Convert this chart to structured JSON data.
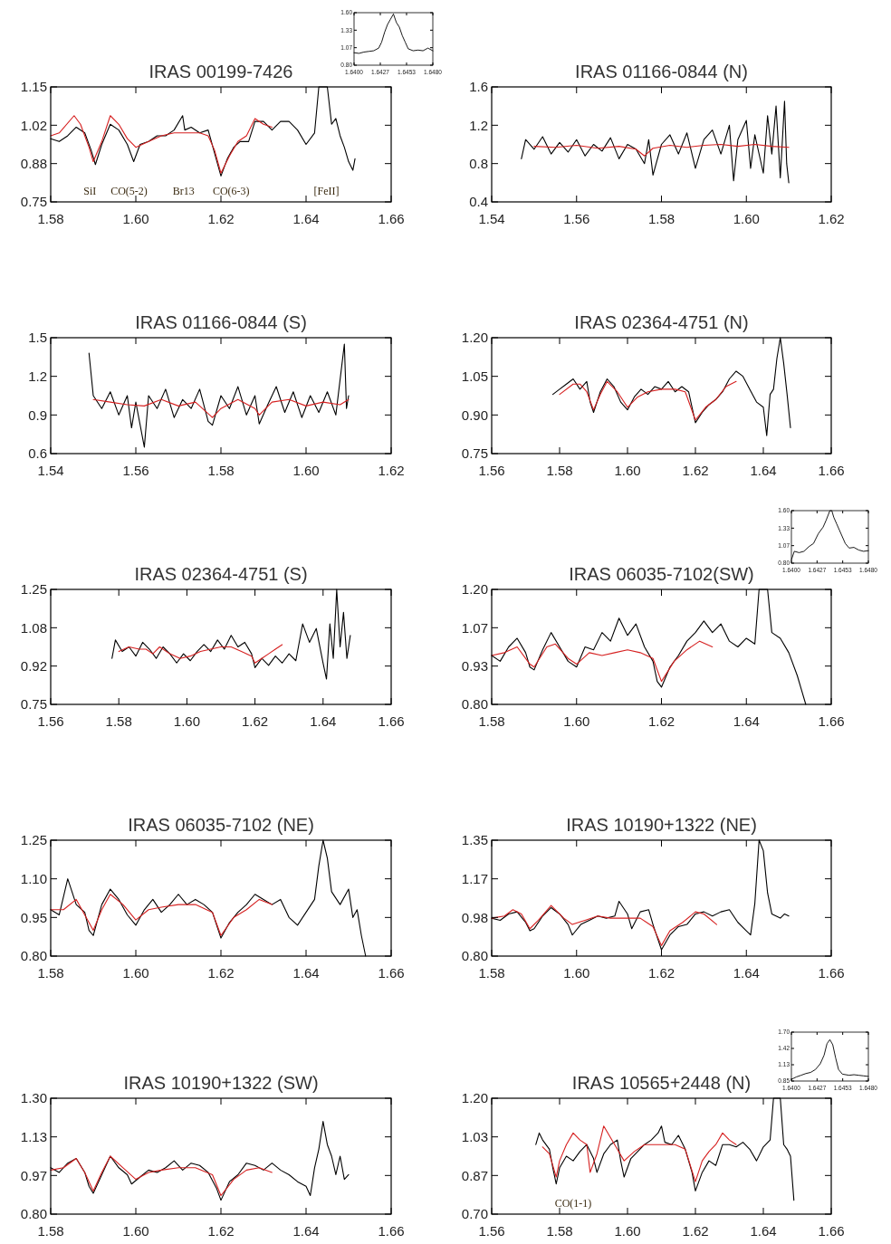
{
  "chart_data": [
    {
      "type": "line",
      "title": "IRAS 00199-7426",
      "xlim": [
        1.58,
        1.66
      ],
      "ylim": [
        0.75,
        1.15
      ],
      "xticks": [
        {
          "value": 1.58,
          "label": "1.58"
        },
        {
          "value": 1.6,
          "label": "1.60"
        },
        {
          "value": 1.62,
          "label": "1.62"
        },
        {
          "value": 1.64,
          "label": "1.64"
        },
        {
          "value": 1.66,
          "label": "1.66"
        }
      ],
      "yticks": [
        {
          "value": 0.75,
          "label": "0.75"
        },
        {
          "value": 0.8833,
          "label": "0.88"
        },
        {
          "value": 1.0167,
          "label": "1.02"
        },
        {
          "value": 1.15,
          "label": "1.15"
        }
      ],
      "annotations": [
        "SiI",
        "CO(5-2)",
        "Br13",
        "CO(6-3)",
        "[FeII]"
      ],
      "series": [
        {
          "color": "#000000",
          "x": [
            1.58,
            1.582,
            1.584,
            1.586,
            1.588,
            1.5895,
            1.5905,
            1.592,
            1.594,
            1.596,
            1.598,
            1.5995,
            1.601,
            1.603,
            1.605,
            1.607,
            1.609,
            1.611,
            1.6115,
            1.613,
            1.615,
            1.617,
            1.6185,
            1.62,
            1.6215,
            1.623,
            1.6245,
            1.6265,
            1.628,
            1.63,
            1.632,
            1.634,
            1.636,
            1.638,
            1.64,
            1.642,
            1.643,
            1.644,
            1.645,
            1.646,
            1.647,
            1.648,
            1.649,
            1.65,
            1.651,
            1.6515
          ],
          "values": [
            0.97,
            0.96,
            0.98,
            1.01,
            0.99,
            0.93,
            0.88,
            0.95,
            1.02,
            1.0,
            0.95,
            0.89,
            0.95,
            0.96,
            0.98,
            0.98,
            1.0,
            1.05,
            1.0,
            1.01,
            0.99,
            1.0,
            0.92,
            0.84,
            0.9,
            0.94,
            0.96,
            0.96,
            1.03,
            1.03,
            1.0,
            1.03,
            1.03,
            1.0,
            0.95,
            0.99,
            1.15,
            1.15,
            1.15,
            1.02,
            1.04,
            0.98,
            0.94,
            0.89,
            0.86,
            0.9
          ]
        },
        {
          "color": "#d62020",
          "x": [
            1.58,
            1.582,
            1.5855,
            1.587,
            1.589,
            1.59,
            1.592,
            1.594,
            1.596,
            1.598,
            1.6,
            1.603,
            1.606,
            1.609,
            1.612,
            1.615,
            1.617,
            1.6185,
            1.62,
            1.622,
            1.624,
            1.626,
            1.628,
            1.63,
            1.632
          ],
          "values": [
            0.98,
            0.99,
            1.05,
            1.02,
            0.94,
            0.89,
            0.96,
            1.05,
            1.02,
            0.97,
            0.94,
            0.96,
            0.98,
            0.99,
            0.99,
            0.99,
            0.98,
            0.93,
            0.85,
            0.91,
            0.96,
            0.98,
            1.04,
            1.02,
            1.01
          ]
        }
      ]
    },
    {
      "type": "line",
      "xlim": [
        1.64,
        1.648
      ],
      "ylim": [
        0.8,
        1.6
      ],
      "xticks": [
        {
          "value": 1.64,
          "label": "1.6400"
        },
        {
          "value": 1.642667,
          "label": "1.6427"
        },
        {
          "value": 1.645333,
          "label": "1.6453"
        },
        {
          "value": 1.648,
          "label": "1.6480"
        }
      ],
      "yticks": [
        {
          "value": 0.8,
          "label": "0.80"
        },
        {
          "value": 1.0667,
          "label": "1.07"
        },
        {
          "value": 1.3333,
          "label": "1.33"
        },
        {
          "value": 1.6,
          "label": "1.60"
        }
      ],
      "series": [
        {
          "color": "#000000",
          "x": [
            1.64,
            1.6405,
            1.641,
            1.6415,
            1.642,
            1.6425,
            1.6428,
            1.6431,
            1.6434,
            1.6437,
            1.644,
            1.6443,
            1.6446,
            1.6449,
            1.6452,
            1.6455,
            1.646,
            1.6465,
            1.647,
            1.6475,
            1.648
          ],
          "values": [
            0.99,
            0.98,
            1.0,
            1.01,
            1.02,
            1.06,
            1.15,
            1.3,
            1.42,
            1.5,
            1.58,
            1.45,
            1.38,
            1.25,
            1.15,
            1.05,
            1.02,
            1.03,
            1.02,
            1.06,
            1.02
          ]
        }
      ]
    },
    {
      "type": "line",
      "title": "IRAS 01166-0844 (N)",
      "xlim": [
        1.54,
        1.62
      ],
      "ylim": [
        0.4,
        1.6
      ],
      "xticks": [
        1.54,
        1.56,
        1.58,
        {
          "value": 1.6,
          "label": "1.60"
        },
        1.62
      ],
      "yticks": [
        0.4,
        0.8,
        1.2,
        1.6
      ],
      "series": [
        {
          "color": "#000000",
          "x": [
            1.547,
            1.548,
            1.55,
            1.552,
            1.554,
            1.556,
            1.558,
            1.56,
            1.562,
            1.564,
            1.566,
            1.568,
            1.57,
            1.572,
            1.574,
            1.576,
            1.577,
            1.578,
            1.58,
            1.582,
            1.584,
            1.586,
            1.588,
            1.59,
            1.592,
            1.594,
            1.596,
            1.597,
            1.598,
            1.6,
            1.601,
            1.602,
            1.604,
            1.605,
            1.606,
            1.607,
            1.608,
            1.609,
            1.6095,
            1.61
          ],
          "values": [
            0.85,
            1.05,
            0.95,
            1.08,
            0.9,
            1.02,
            0.92,
            1.05,
            0.88,
            1.0,
            0.93,
            1.07,
            0.85,
            1.0,
            0.95,
            0.8,
            1.05,
            0.68,
            1.0,
            1.1,
            0.9,
            1.12,
            0.75,
            1.05,
            1.15,
            0.9,
            1.2,
            0.62,
            1.05,
            1.25,
            0.75,
            1.1,
            0.7,
            1.3,
            0.9,
            1.4,
            0.65,
            1.45,
            0.8,
            0.6
          ]
        },
        {
          "color": "#d62020",
          "x": [
            1.55,
            1.555,
            1.56,
            1.565,
            1.57,
            1.574,
            1.576,
            1.578,
            1.582,
            1.586,
            1.59,
            1.594,
            1.598,
            1.602,
            1.606,
            1.61
          ],
          "values": [
            0.98,
            0.97,
            0.99,
            0.96,
            0.98,
            0.95,
            0.88,
            0.96,
            0.99,
            0.97,
            0.99,
            1.0,
            0.98,
            1.0,
            0.98,
            0.97
          ]
        }
      ]
    },
    {
      "type": "line",
      "title": "IRAS 01166-0844 (S)",
      "xlim": [
        1.54,
        1.62
      ],
      "ylim": [
        0.6,
        1.5
      ],
      "xticks": [
        1.54,
        1.56,
        1.58,
        {
          "value": 1.6,
          "label": "1.60"
        },
        1.62
      ],
      "yticks": [
        0.6,
        0.9,
        1.2,
        1.5
      ],
      "series": [
        {
          "color": "#000000",
          "x": [
            1.549,
            1.55,
            1.552,
            1.554,
            1.556,
            1.558,
            1.559,
            1.56,
            1.562,
            1.563,
            1.565,
            1.567,
            1.569,
            1.571,
            1.573,
            1.575,
            1.577,
            1.578,
            1.58,
            1.582,
            1.584,
            1.586,
            1.588,
            1.589,
            1.591,
            1.593,
            1.595,
            1.597,
            1.599,
            1.601,
            1.603,
            1.605,
            1.607,
            1.609,
            1.6095,
            1.61
          ],
          "values": [
            1.38,
            1.05,
            0.95,
            1.08,
            0.9,
            1.05,
            0.8,
            1.0,
            0.65,
            1.05,
            0.95,
            1.1,
            0.88,
            1.02,
            0.95,
            1.1,
            0.85,
            0.82,
            1.05,
            0.95,
            1.12,
            0.9,
            1.05,
            0.83,
            0.98,
            1.12,
            0.92,
            1.08,
            0.88,
            1.05,
            0.92,
            1.08,
            0.9,
            1.45,
            0.95,
            1.05
          ]
        },
        {
          "color": "#d62020",
          "x": [
            1.55,
            1.554,
            1.558,
            1.562,
            1.566,
            1.57,
            1.574,
            1.578,
            1.58,
            1.584,
            1.588,
            1.589,
            1.592,
            1.596,
            1.6,
            1.604,
            1.608,
            1.61
          ],
          "values": [
            1.02,
            1.0,
            0.98,
            0.97,
            1.02,
            0.97,
            1.0,
            0.88,
            0.95,
            1.02,
            0.95,
            0.9,
            1.0,
            1.02,
            0.97,
            1.0,
            0.98,
            1.02
          ]
        }
      ]
    },
    {
      "type": "line",
      "title": "IRAS 02364-4751 (N)",
      "xlim": [
        1.56,
        1.66
      ],
      "ylim": [
        0.75,
        1.2
      ],
      "xticks": [
        1.56,
        1.58,
        {
          "value": 1.6,
          "label": "1.60"
        },
        1.62,
        1.64,
        1.66
      ],
      "yticks": [
        {
          "value": 0.75,
          "label": "0.75"
        },
        {
          "value": 0.9,
          "label": "0.90"
        },
        {
          "value": 1.05,
          "label": "1.05"
        },
        {
          "value": 1.2,
          "label": "1.20"
        }
      ],
      "series": [
        {
          "color": "#000000",
          "x": [
            1.578,
            1.58,
            1.582,
            1.584,
            1.586,
            1.588,
            1.589,
            1.59,
            1.592,
            1.594,
            1.596,
            1.598,
            1.6,
            1.602,
            1.604,
            1.606,
            1.608,
            1.61,
            1.612,
            1.614,
            1.616,
            1.618,
            1.619,
            1.62,
            1.622,
            1.624,
            1.626,
            1.628,
            1.63,
            1.632,
            1.634,
            1.636,
            1.638,
            1.64,
            1.641,
            1.642,
            1.643,
            1.644,
            1.645,
            1.646,
            1.647,
            1.648
          ],
          "values": [
            0.98,
            1.0,
            1.02,
            1.04,
            1.0,
            1.03,
            0.95,
            0.91,
            0.99,
            1.04,
            1.01,
            0.95,
            0.92,
            0.97,
            1.0,
            0.98,
            1.01,
            1.0,
            1.03,
            0.99,
            1.01,
            0.99,
            0.93,
            0.87,
            0.91,
            0.94,
            0.96,
            0.99,
            1.04,
            1.07,
            1.05,
            1.0,
            0.95,
            0.93,
            0.82,
            0.98,
            1.0,
            1.12,
            1.2,
            1.1,
            0.98,
            0.85
          ]
        },
        {
          "color": "#d62020",
          "x": [
            1.58,
            1.584,
            1.586,
            1.588,
            1.59,
            1.592,
            1.594,
            1.597,
            1.6,
            1.603,
            1.606,
            1.61,
            1.614,
            1.617,
            1.62,
            1.623,
            1.626,
            1.629,
            1.632
          ],
          "values": [
            0.98,
            1.02,
            1.02,
            0.99,
            0.92,
            0.98,
            1.03,
            0.99,
            0.93,
            0.97,
            0.99,
            1.0,
            1.0,
            0.99,
            0.88,
            0.93,
            0.96,
            1.01,
            1.03
          ]
        }
      ]
    },
    {
      "type": "line",
      "title": "IRAS 02364-4751 (S)",
      "xlim": [
        1.56,
        1.66
      ],
      "ylim": [
        0.75,
        1.25
      ],
      "xticks": [
        1.56,
        1.58,
        {
          "value": 1.6,
          "label": "1.60"
        },
        1.62,
        1.64,
        1.66
      ],
      "yticks": [
        {
          "value": 0.75,
          "label": "0.75"
        },
        {
          "value": 0.9167,
          "label": "0.92"
        },
        {
          "value": 1.0833,
          "label": "1.08"
        },
        {
          "value": 1.25,
          "label": "1.25"
        }
      ],
      "series": [
        {
          "color": "#000000",
          "x": [
            1.578,
            1.579,
            1.581,
            1.583,
            1.585,
            1.587,
            1.589,
            1.591,
            1.593,
            1.595,
            1.597,
            1.599,
            1.601,
            1.603,
            1.605,
            1.607,
            1.609,
            1.611,
            1.613,
            1.615,
            1.617,
            1.619,
            1.62,
            1.622,
            1.624,
            1.626,
            1.628,
            1.63,
            1.632,
            1.634,
            1.636,
            1.638,
            1.64,
            1.641,
            1.642,
            1.643,
            1.644,
            1.645,
            1.646,
            1.647,
            1.648
          ],
          "values": [
            0.95,
            1.03,
            0.98,
            1.0,
            0.96,
            1.02,
            0.99,
            0.95,
            1.0,
            0.97,
            0.93,
            0.97,
            0.94,
            0.98,
            1.01,
            0.98,
            1.03,
            0.99,
            1.05,
            1.0,
            1.02,
            0.97,
            0.91,
            0.95,
            0.92,
            0.96,
            0.93,
            0.97,
            0.94,
            1.1,
            1.02,
            1.08,
            0.93,
            0.86,
            1.1,
            0.95,
            1.25,
            1.0,
            1.15,
            0.95,
            1.05
          ]
        },
        {
          "color": "#d62020",
          "x": [
            1.58,
            1.583,
            1.586,
            1.588,
            1.59,
            1.592,
            1.595,
            1.598,
            1.601,
            1.604,
            1.607,
            1.61,
            1.613,
            1.616,
            1.619,
            1.62,
            1.622,
            1.624,
            1.626,
            1.628
          ],
          "values": [
            0.98,
            1.0,
            0.99,
            0.99,
            0.97,
            1.0,
            0.97,
            0.95,
            0.96,
            0.98,
            0.99,
            1.0,
            1.0,
            0.98,
            0.96,
            0.93,
            0.95,
            0.97,
            0.99,
            1.01
          ]
        }
      ]
    },
    {
      "type": "line",
      "title": "IRAS 06035-7102(SW)",
      "xlim": [
        1.58,
        1.66
      ],
      "ylim": [
        0.8,
        1.2
      ],
      "xticks": [
        {
          "value": 1.58,
          "label": "1.58"
        },
        {
          "value": 1.6,
          "label": "1.60"
        },
        {
          "value": 1.62,
          "label": "1.62"
        },
        {
          "value": 1.64,
          "label": "1.64"
        },
        {
          "value": 1.66,
          "label": "1.66"
        }
      ],
      "yticks": [
        {
          "value": 0.8,
          "label": "0.80"
        },
        {
          "value": 0.9333,
          "label": "0.93"
        },
        {
          "value": 1.0667,
          "label": "1.07"
        },
        {
          "value": 1.2,
          "label": "1.20"
        }
      ],
      "series": [
        {
          "color": "#000000",
          "x": [
            1.58,
            1.582,
            1.584,
            1.586,
            1.588,
            1.589,
            1.59,
            1.592,
            1.594,
            1.596,
            1.598,
            1.6,
            1.602,
            1.604,
            1.606,
            1.608,
            1.61,
            1.612,
            1.614,
            1.616,
            1.618,
            1.619,
            1.62,
            1.622,
            1.624,
            1.626,
            1.628,
            1.63,
            1.632,
            1.634,
            1.636,
            1.638,
            1.64,
            1.642,
            1.643,
            1.645,
            1.646,
            1.648,
            1.65,
            1.652,
            1.653,
            1.654
          ],
          "values": [
            0.97,
            0.95,
            1.0,
            1.03,
            0.98,
            0.93,
            0.92,
            0.99,
            1.05,
            1.0,
            0.95,
            0.93,
            1.0,
            0.99,
            1.05,
            1.02,
            1.1,
            1.04,
            1.08,
            1.0,
            0.95,
            0.88,
            0.86,
            0.93,
            0.97,
            1.02,
            1.05,
            1.09,
            1.05,
            1.08,
            1.02,
            1.0,
            1.03,
            1.01,
            1.2,
            1.2,
            1.05,
            1.03,
            0.98,
            0.9,
            0.85,
            0.8
          ]
        },
        {
          "color": "#d62020",
          "x": [
            1.58,
            1.583,
            1.586,
            1.589,
            1.59,
            1.593,
            1.595,
            1.598,
            1.6,
            1.603,
            1.606,
            1.609,
            1.612,
            1.615,
            1.618,
            1.62,
            1.623,
            1.626,
            1.629,
            1.632
          ],
          "values": [
            0.97,
            0.98,
            1.0,
            0.94,
            0.93,
            1.0,
            1.01,
            0.96,
            0.94,
            0.98,
            0.97,
            0.98,
            0.99,
            0.98,
            0.96,
            0.88,
            0.95,
            0.99,
            1.02,
            1.0
          ]
        }
      ]
    },
    {
      "type": "line",
      "xlim": [
        1.64,
        1.648
      ],
      "ylim": [
        0.8,
        1.6
      ],
      "xticks": [
        {
          "value": 1.64,
          "label": "1.6400"
        },
        {
          "value": 1.642667,
          "label": "1.6427"
        },
        {
          "value": 1.645333,
          "label": "1.6453"
        },
        {
          "value": 1.648,
          "label": "1.6480"
        }
      ],
      "yticks": [
        {
          "value": 0.8,
          "label": "0.80"
        },
        {
          "value": 1.0667,
          "label": "1.07"
        },
        {
          "value": 1.3333,
          "label": "1.33"
        },
        {
          "value": 1.6,
          "label": "1.60"
        }
      ],
      "series": [
        {
          "color": "#000000",
          "x": [
            1.64,
            1.6403,
            1.6408,
            1.6413,
            1.6418,
            1.6423,
            1.6428,
            1.6433,
            1.6436,
            1.644,
            1.6442,
            1.6444,
            1.6447,
            1.645,
            1.6453,
            1.6456,
            1.646,
            1.6465,
            1.647,
            1.6475,
            1.648
          ],
          "values": [
            0.85,
            0.98,
            0.96,
            0.98,
            1.05,
            1.1,
            1.25,
            1.35,
            1.45,
            1.6,
            1.6,
            1.5,
            1.4,
            1.3,
            1.2,
            1.1,
            1.03,
            1.04,
            1.0,
            0.98,
            0.99
          ]
        }
      ]
    },
    {
      "type": "line",
      "title": "IRAS 06035-7102 (NE)",
      "xlim": [
        1.58,
        1.66
      ],
      "ylim": [
        0.8,
        1.25
      ],
      "xticks": [
        {
          "value": 1.58,
          "label": "1.58"
        },
        {
          "value": 1.6,
          "label": "1.60"
        },
        {
          "value": 1.62,
          "label": "1.62"
        },
        {
          "value": 1.64,
          "label": "1.64"
        },
        {
          "value": 1.66,
          "label": "1.66"
        }
      ],
      "yticks": [
        {
          "value": 0.8,
          "label": "0.80"
        },
        {
          "value": 0.95,
          "label": "0.95"
        },
        {
          "value": 1.1,
          "label": "1.10"
        },
        {
          "value": 1.25,
          "label": "1.25"
        }
      ],
      "series": [
        {
          "color": "#000000",
          "x": [
            1.58,
            1.582,
            1.584,
            1.586,
            1.588,
            1.589,
            1.59,
            1.592,
            1.594,
            1.596,
            1.598,
            1.6,
            1.602,
            1.604,
            1.606,
            1.608,
            1.61,
            1.612,
            1.614,
            1.616,
            1.618,
            1.62,
            1.622,
            1.624,
            1.626,
            1.628,
            1.63,
            1.632,
            1.634,
            1.636,
            1.638,
            1.64,
            1.642,
            1.643,
            1.644,
            1.645,
            1.646,
            1.648,
            1.65,
            1.651,
            1.652,
            1.653,
            1.654
          ],
          "values": [
            0.98,
            0.96,
            1.1,
            1.0,
            0.97,
            0.9,
            0.88,
            1.0,
            1.06,
            1.02,
            0.96,
            0.92,
            0.98,
            1.02,
            0.97,
            1.0,
            1.04,
            1.0,
            1.02,
            1.0,
            0.97,
            0.87,
            0.93,
            0.97,
            1.0,
            1.04,
            1.02,
            1.0,
            1.02,
            0.95,
            0.92,
            0.97,
            1.02,
            1.15,
            1.25,
            1.18,
            1.05,
            1.0,
            1.06,
            0.95,
            0.98,
            0.88,
            0.8
          ]
        },
        {
          "color": "#d62020",
          "x": [
            1.58,
            1.583,
            1.586,
            1.588,
            1.59,
            1.592,
            1.594,
            1.597,
            1.6,
            1.603,
            1.606,
            1.61,
            1.614,
            1.618,
            1.62,
            1.623,
            1.626,
            1.629,
            1.632
          ],
          "values": [
            0.98,
            0.98,
            1.02,
            0.96,
            0.9,
            0.98,
            1.04,
            1.0,
            0.94,
            0.98,
            0.99,
            1.0,
            1.0,
            0.97,
            0.88,
            0.95,
            0.98,
            1.02,
            1.0
          ]
        }
      ]
    },
    {
      "type": "line",
      "title": "IRAS 10190+1322 (NE)",
      "xlim": [
        1.58,
        1.66
      ],
      "ylim": [
        0.8,
        1.35
      ],
      "xticks": [
        {
          "value": 1.58,
          "label": "1.58"
        },
        {
          "value": 1.6,
          "label": "1.60"
        },
        {
          "value": 1.62,
          "label": "1.62"
        },
        {
          "value": 1.64,
          "label": "1.64"
        },
        {
          "value": 1.66,
          "label": "1.66"
        }
      ],
      "yticks": [
        {
          "value": 0.8,
          "label": "0.80"
        },
        {
          "value": 0.9833,
          "label": "0.98"
        },
        {
          "value": 1.1667,
          "label": "1.17"
        },
        {
          "value": 1.35,
          "label": "1.35"
        }
      ],
      "series": [
        {
          "color": "#000000",
          "x": [
            1.58,
            1.582,
            1.584,
            1.586,
            1.588,
            1.589,
            1.59,
            1.592,
            1.594,
            1.596,
            1.598,
            1.599,
            1.601,
            1.603,
            1.605,
            1.607,
            1.609,
            1.61,
            1.612,
            1.613,
            1.615,
            1.617,
            1.618,
            1.62,
            1.622,
            1.624,
            1.626,
            1.628,
            1.63,
            1.632,
            1.634,
            1.636,
            1.638,
            1.64,
            1.641,
            1.642,
            1.643,
            1.644,
            1.645,
            1.646,
            1.648,
            1.649,
            1.65
          ],
          "values": [
            0.98,
            0.97,
            1.0,
            1.01,
            0.96,
            0.92,
            0.93,
            0.99,
            1.03,
            1.0,
            0.95,
            0.9,
            0.95,
            0.97,
            0.99,
            0.98,
            0.99,
            1.06,
            1.0,
            0.93,
            1.01,
            1.02,
            0.95,
            0.83,
            0.9,
            0.94,
            0.95,
            1.0,
            1.01,
            0.99,
            1.01,
            1.02,
            0.96,
            0.92,
            0.9,
            1.05,
            1.35,
            1.3,
            1.1,
            1.0,
            0.98,
            1.0,
            0.99
          ]
        },
        {
          "color": "#d62020",
          "x": [
            1.58,
            1.583,
            1.585,
            1.587,
            1.589,
            1.591,
            1.594,
            1.597,
            1.599,
            1.602,
            1.605,
            1.608,
            1.612,
            1.615,
            1.618,
            1.62,
            1.622,
            1.625,
            1.628,
            1.63,
            1.633
          ],
          "values": [
            0.98,
            0.99,
            1.02,
            1.0,
            0.93,
            0.97,
            1.04,
            0.98,
            0.95,
            0.97,
            0.99,
            0.98,
            0.98,
            0.98,
            0.94,
            0.85,
            0.92,
            0.96,
            1.01,
            1.0,
            0.95
          ]
        }
      ]
    },
    {
      "type": "line",
      "title": "IRAS 10190+1322 (SW)",
      "xlim": [
        1.58,
        1.66
      ],
      "ylim": [
        0.8,
        1.3
      ],
      "xticks": [
        {
          "value": 1.58,
          "label": "1.58"
        },
        {
          "value": 1.6,
          "label": "1.60"
        },
        {
          "value": 1.62,
          "label": "1.62"
        },
        {
          "value": 1.64,
          "label": "1.64"
        },
        {
          "value": 1.66,
          "label": "1.66"
        }
      ],
      "yticks": [
        {
          "value": 0.8,
          "label": "0.80"
        },
        {
          "value": 0.9667,
          "label": "0.97"
        },
        {
          "value": 1.1333,
          "label": "1.13"
        },
        {
          "value": 1.3,
          "label": "1.30"
        }
      ],
      "series": [
        {
          "color": "#000000",
          "x": [
            1.58,
            1.582,
            1.584,
            1.586,
            1.588,
            1.589,
            1.59,
            1.592,
            1.594,
            1.596,
            1.598,
            1.599,
            1.601,
            1.603,
            1.605,
            1.607,
            1.609,
            1.611,
            1.613,
            1.615,
            1.617,
            1.619,
            1.62,
            1.622,
            1.624,
            1.626,
            1.628,
            1.63,
            1.632,
            1.634,
            1.636,
            1.638,
            1.64,
            1.641,
            1.642,
            1.643,
            1.644,
            1.645,
            1.646,
            1.647,
            1.648,
            1.649,
            1.65
          ],
          "values": [
            1.0,
            0.98,
            1.02,
            1.04,
            0.98,
            0.92,
            0.89,
            0.97,
            1.05,
            1.0,
            0.97,
            0.93,
            0.96,
            0.99,
            0.98,
            1.0,
            1.03,
            0.99,
            1.02,
            1.01,
            0.98,
            0.91,
            0.86,
            0.94,
            0.97,
            1.02,
            1.01,
            0.99,
            1.02,
            0.99,
            0.97,
            0.94,
            0.92,
            0.88,
            1.0,
            1.08,
            1.2,
            1.1,
            1.05,
            0.97,
            1.05,
            0.95,
            0.97
          ]
        },
        {
          "color": "#d62020",
          "x": [
            1.58,
            1.583,
            1.586,
            1.588,
            1.59,
            1.592,
            1.594,
            1.597,
            1.6,
            1.603,
            1.606,
            1.61,
            1.614,
            1.618,
            1.62,
            1.623,
            1.626,
            1.629,
            1.632
          ],
          "values": [
            0.99,
            1.0,
            1.04,
            0.98,
            0.9,
            0.98,
            1.05,
            1.0,
            0.95,
            0.98,
            0.99,
            1.0,
            1.0,
            0.97,
            0.88,
            0.95,
            0.99,
            1.0,
            0.98
          ]
        }
      ]
    },
    {
      "type": "line",
      "title": "IRAS 10565+2448 (N)",
      "xlim": [
        1.56,
        1.66
      ],
      "ylim": [
        0.7,
        1.2
      ],
      "xticks": [
        1.56,
        1.58,
        {
          "value": 1.6,
          "label": "1.60"
        },
        1.62,
        1.64,
        1.66
      ],
      "yticks": [
        {
          "value": 0.7,
          "label": "0.70"
        },
        {
          "value": 0.8667,
          "label": "0.87"
        },
        {
          "value": 1.0333,
          "label": "1.03"
        },
        {
          "value": 1.2,
          "label": "1.20"
        }
      ],
      "annotations": [
        "CO(1-1)"
      ],
      "series": [
        {
          "color": "#000000",
          "x": [
            1.573,
            1.574,
            1.575,
            1.577,
            1.578,
            1.579,
            1.58,
            1.582,
            1.584,
            1.586,
            1.588,
            1.59,
            1.591,
            1.593,
            1.595,
            1.597,
            1.598,
            1.599,
            1.601,
            1.603,
            1.605,
            1.607,
            1.609,
            1.61,
            1.611,
            1.613,
            1.615,
            1.617,
            1.619,
            1.62,
            1.622,
            1.624,
            1.626,
            1.628,
            1.63,
            1.632,
            1.634,
            1.636,
            1.638,
            1.64,
            1.642,
            1.643,
            1.645,
            1.646,
            1.647,
            1.648,
            1.649
          ],
          "values": [
            1.0,
            1.05,
            1.02,
            0.98,
            0.9,
            0.83,
            0.9,
            0.95,
            0.93,
            0.97,
            1.0,
            0.94,
            0.88,
            0.96,
            1.0,
            1.02,
            0.93,
            0.86,
            0.94,
            0.97,
            1.0,
            1.02,
            1.05,
            1.08,
            1.01,
            1.0,
            1.04,
            0.98,
            0.88,
            0.8,
            0.88,
            0.93,
            0.91,
            1.0,
            1.0,
            0.99,
            1.01,
            0.98,
            0.93,
            0.99,
            1.02,
            1.2,
            1.2,
            1.0,
            0.98,
            0.95,
            0.76
          ]
        },
        {
          "color": "#d62020",
          "x": [
            1.575,
            1.577,
            1.579,
            1.58,
            1.582,
            1.584,
            1.586,
            1.588,
            1.589,
            1.591,
            1.593,
            1.595,
            1.597,
            1.599,
            1.602,
            1.605,
            1.608,
            1.611,
            1.614,
            1.617,
            1.62,
            1.622,
            1.624,
            1.626,
            1.628,
            1.63,
            1.632
          ],
          "values": [
            0.99,
            0.96,
            0.86,
            0.93,
            1.0,
            1.05,
            1.02,
            1.0,
            0.88,
            0.96,
            1.08,
            1.03,
            0.98,
            0.93,
            0.97,
            1.0,
            1.0,
            1.0,
            1.0,
            0.98,
            0.84,
            0.93,
            0.97,
            1.0,
            1.05,
            1.02,
            1.0
          ]
        }
      ]
    },
    {
      "type": "line",
      "xlim": [
        1.64,
        1.648
      ],
      "ylim": [
        0.85,
        1.7
      ],
      "xticks": [
        {
          "value": 1.64,
          "label": "1.6400"
        },
        {
          "value": 1.642667,
          "label": "1.6427"
        },
        {
          "value": 1.645333,
          "label": "1.6453"
        },
        {
          "value": 1.648,
          "label": "1.6480"
        }
      ],
      "yticks": [
        {
          "value": 0.85,
          "label": "0.85"
        },
        {
          "value": 1.1333,
          "label": "1.13"
        },
        {
          "value": 1.4167,
          "label": "1.42"
        },
        {
          "value": 1.7,
          "label": "1.70"
        }
      ],
      "series": [
        {
          "color": "#000000",
          "x": [
            1.64,
            1.6405,
            1.641,
            1.6415,
            1.642,
            1.6425,
            1.643,
            1.6434,
            1.6437,
            1.644,
            1.6443,
            1.6446,
            1.6449,
            1.6453,
            1.646,
            1.6465,
            1.647,
            1.6475,
            1.648
          ],
          "values": [
            0.88,
            0.92,
            0.95,
            0.98,
            1.0,
            1.05,
            1.15,
            1.3,
            1.5,
            1.57,
            1.48,
            1.25,
            1.05,
            0.97,
            0.95,
            0.96,
            0.95,
            0.94,
            0.93
          ]
        }
      ]
    }
  ]
}
